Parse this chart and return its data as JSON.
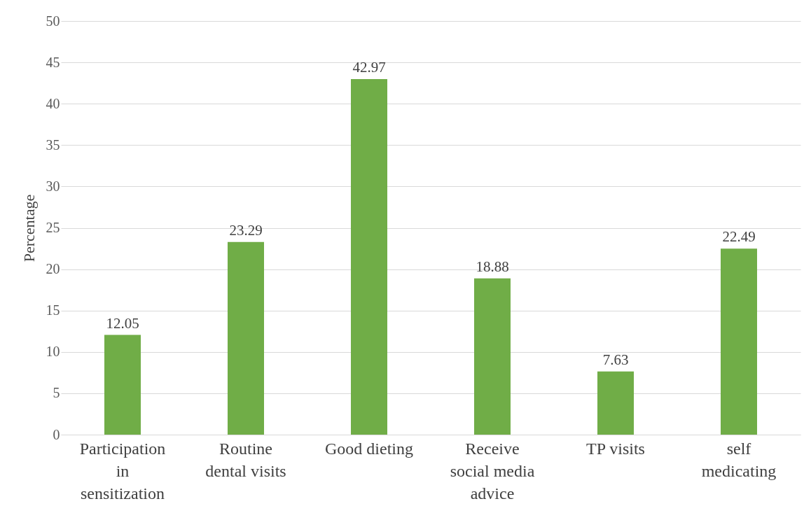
{
  "chart_data": {
    "type": "bar",
    "ylabel": "Percentage",
    "categories": [
      "Participation in sensitization",
      "Routine dental visits",
      "Good dieting",
      "Receive social media advice",
      "TP visits",
      "self medicating"
    ],
    "values": [
      12.05,
      23.29,
      42.97,
      18.88,
      7.63,
      22.49
    ],
    "color": "#70ad47",
    "ylim": [
      0,
      50
    ],
    "yticks": [
      0,
      5,
      10,
      15,
      20,
      25,
      30,
      35,
      40,
      45,
      50
    ],
    "grid": "y",
    "data_labels": true
  }
}
